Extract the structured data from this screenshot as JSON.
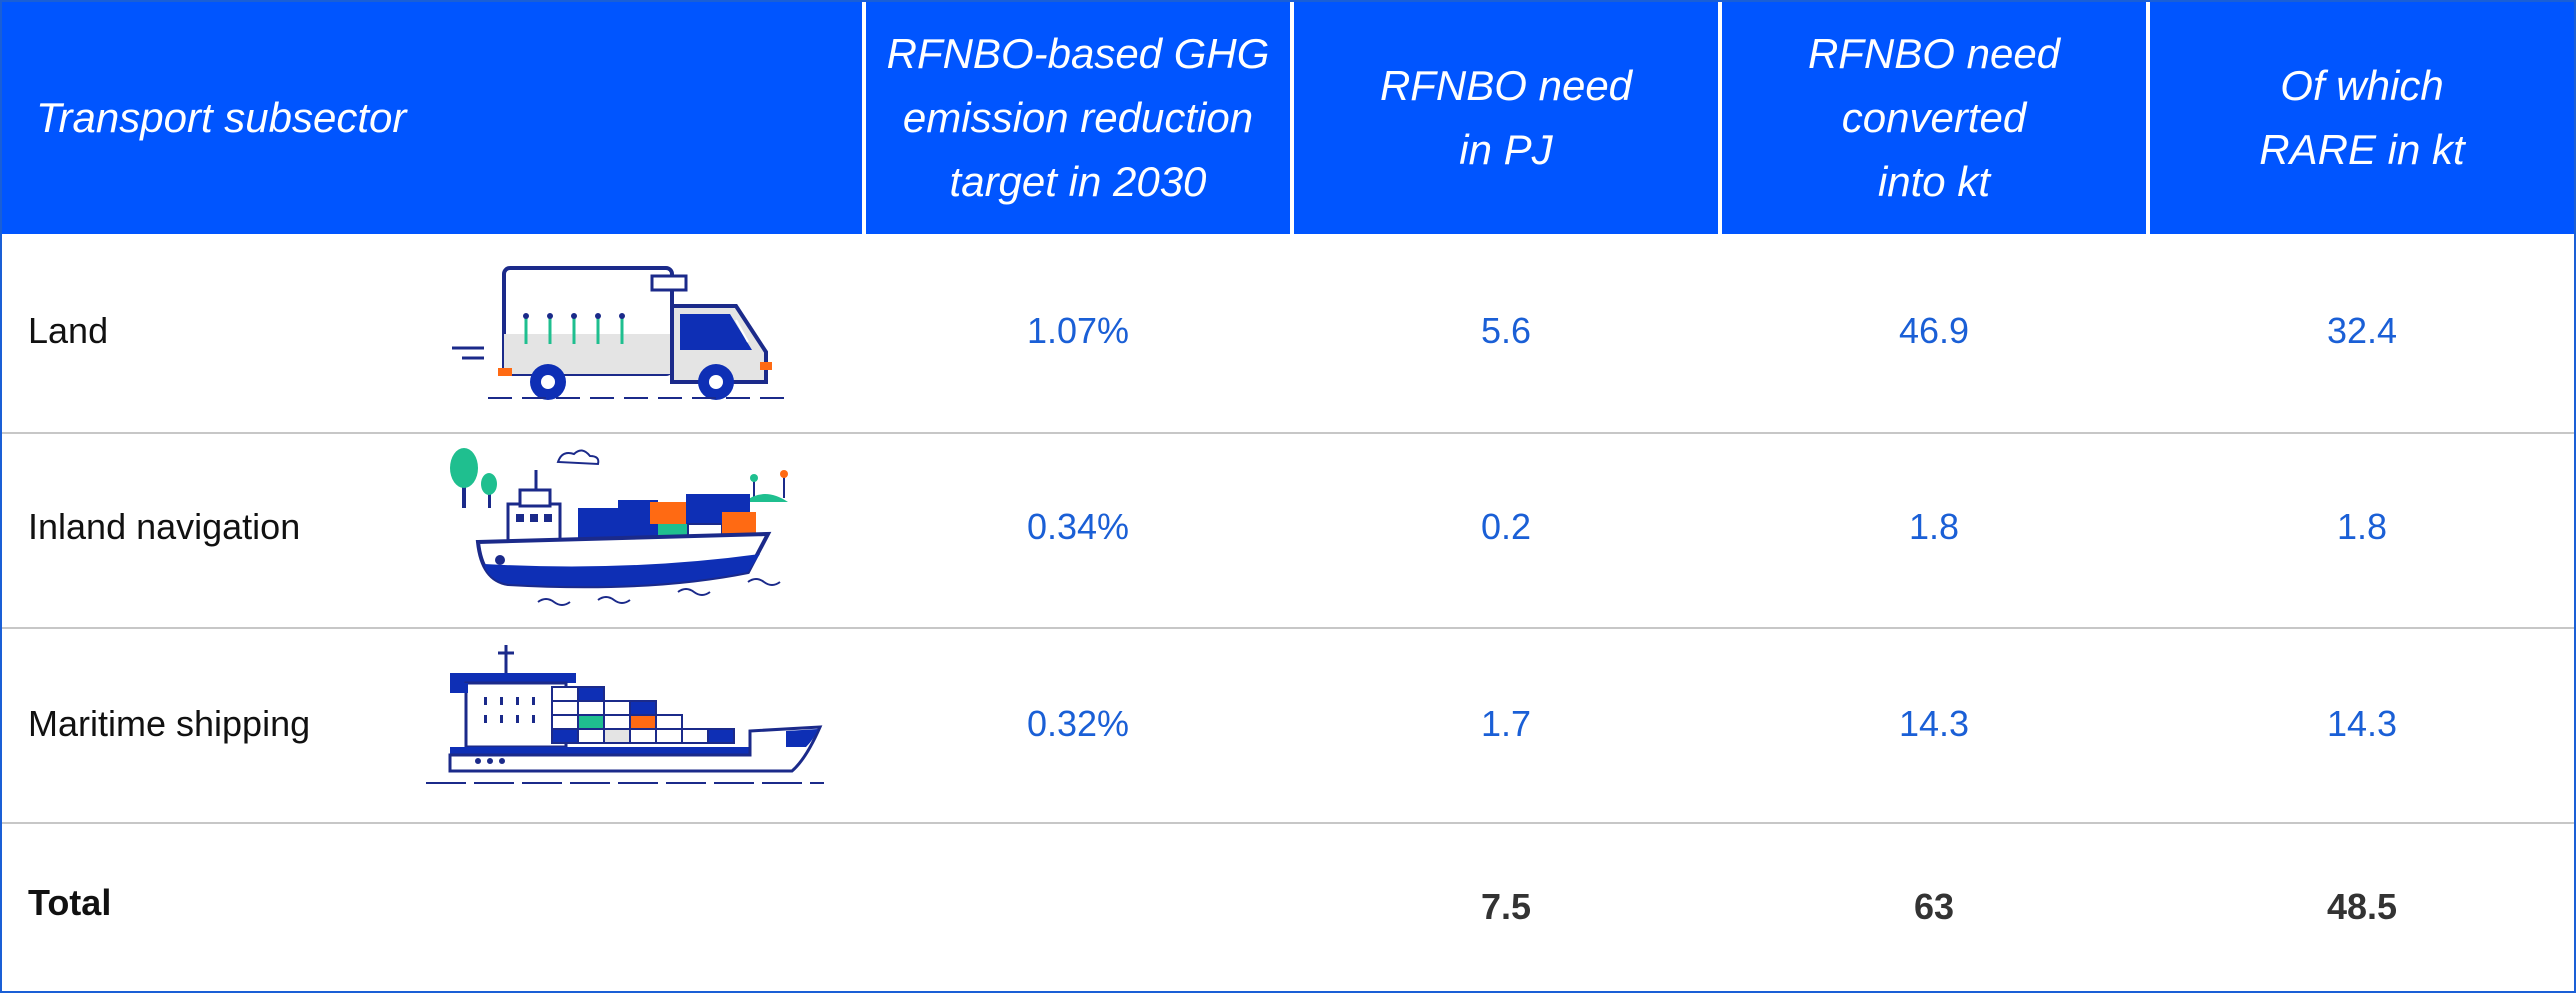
{
  "table": {
    "headers": [
      "Transport subsector",
      "RFNBO-based GHG\nemission reduction\ntarget in 2030",
      "RFNBO need\nin PJ",
      "RFNBO need\nconverted\ninto kt",
      "Of which\nRARE in kt"
    ],
    "rows": [
      {
        "subsector": "Land",
        "icon": "truck-icon",
        "target": "1.07%",
        "need_pj": "5.6",
        "need_kt": "46.9",
        "rare_kt": "32.4"
      },
      {
        "subsector": "Inland navigation",
        "icon": "inland-cargo-barge-icon",
        "target": "0.34%",
        "need_pj": "0.2",
        "need_kt": "1.8",
        "rare_kt": "1.8"
      },
      {
        "subsector": "Maritime shipping",
        "icon": "container-ship-icon",
        "target": "0.32%",
        "need_pj": "1.7",
        "need_kt": "14.3",
        "rare_kt": "14.3"
      }
    ],
    "total": {
      "label": "Total",
      "target": "",
      "need_pj": "7.5",
      "need_kt": "63",
      "rare_kt": "48.5"
    }
  },
  "colors": {
    "header_bg": "#0055ff",
    "value_blue": "#1a5fd6",
    "icon_navy": "#1b2a8a",
    "icon_orange": "#ff6a13",
    "icon_green": "#1fbf8f"
  }
}
